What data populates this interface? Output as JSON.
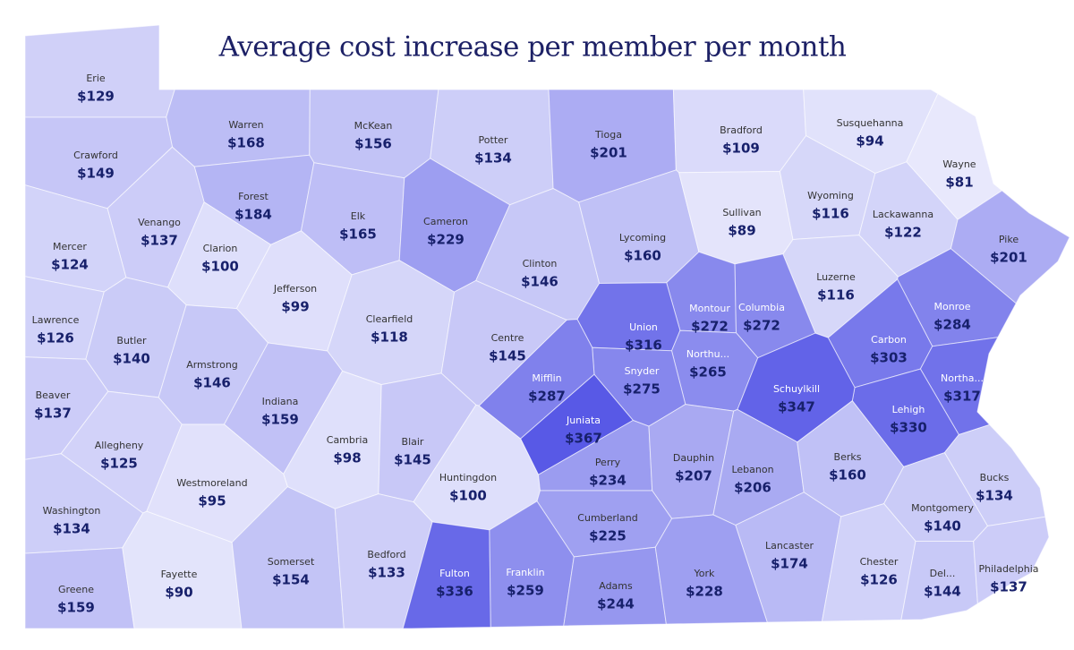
{
  "title": "Average cost increase per member per month",
  "color_scale": [
    "#e8e8fc",
    "#5859e6"
  ],
  "counties": [
    {
      "name": "Erie",
      "value": 129,
      "value_label": "$129"
    },
    {
      "name": "Warren",
      "value": 168,
      "value_label": "$168"
    },
    {
      "name": "McKean",
      "value": 156,
      "value_label": "$156"
    },
    {
      "name": "Potter",
      "value": 134,
      "value_label": "$134"
    },
    {
      "name": "Tioga",
      "value": 201,
      "value_label": "$201"
    },
    {
      "name": "Bradford",
      "value": 109,
      "value_label": "$109"
    },
    {
      "name": "Susquehanna",
      "value": 94,
      "value_label": "$94"
    },
    {
      "name": "Wayne",
      "value": 81,
      "value_label": "$81"
    },
    {
      "name": "Crawford",
      "value": 149,
      "value_label": "$149"
    },
    {
      "name": "Forest",
      "value": 184,
      "value_label": "$184"
    },
    {
      "name": "Elk",
      "value": 165,
      "value_label": "$165"
    },
    {
      "name": "Cameron",
      "value": 229,
      "value_label": "$229"
    },
    {
      "name": "Venango",
      "value": 137,
      "value_label": "$137"
    },
    {
      "name": "Mercer",
      "value": 124,
      "value_label": "$124"
    },
    {
      "name": "Clarion",
      "value": 100,
      "value_label": "$100"
    },
    {
      "name": "Jefferson",
      "value": 99,
      "value_label": "$99"
    },
    {
      "name": "Clearfield",
      "value": 118,
      "value_label": "$118"
    },
    {
      "name": "Clinton",
      "value": 146,
      "value_label": "$146"
    },
    {
      "name": "Lycoming",
      "value": 160,
      "value_label": "$160"
    },
    {
      "name": "Sullivan",
      "value": 89,
      "value_label": "$89"
    },
    {
      "name": "Wyoming",
      "value": 116,
      "value_label": "$116"
    },
    {
      "name": "Lackawanna",
      "value": 122,
      "value_label": "$122"
    },
    {
      "name": "Pike",
      "value": 201,
      "value_label": "$201"
    },
    {
      "name": "Luzerne",
      "value": 116,
      "value_label": "$116"
    },
    {
      "name": "Montour",
      "value": 272,
      "value_label": "$272"
    },
    {
      "name": "Columbia",
      "value": 272,
      "value_label": "$272"
    },
    {
      "name": "Union",
      "value": 316,
      "value_label": "$316"
    },
    {
      "name": "Northu...",
      "value": 265,
      "value_label": "$265"
    },
    {
      "name": "Monroe",
      "value": 284,
      "value_label": "$284"
    },
    {
      "name": "Carbon",
      "value": 303,
      "value_label": "$303"
    },
    {
      "name": "Northa...",
      "value": 317,
      "value_label": "$317"
    },
    {
      "name": "Lehigh",
      "value": 330,
      "value_label": "$330"
    },
    {
      "name": "Schuylkill",
      "value": 347,
      "value_label": "$347"
    },
    {
      "name": "Snyder",
      "value": 275,
      "value_label": "$275"
    },
    {
      "name": "Mifflin",
      "value": 287,
      "value_label": "$287"
    },
    {
      "name": "Juniata",
      "value": 367,
      "value_label": "$367"
    },
    {
      "name": "Centre",
      "value": 145,
      "value_label": "$145"
    },
    {
      "name": "Lawrence",
      "value": 126,
      "value_label": "$126"
    },
    {
      "name": "Butler",
      "value": 140,
      "value_label": "$140"
    },
    {
      "name": "Armstrong",
      "value": 146,
      "value_label": "$146"
    },
    {
      "name": "Indiana",
      "value": 159,
      "value_label": "$159"
    },
    {
      "name": "Beaver",
      "value": 137,
      "value_label": "$137"
    },
    {
      "name": "Allegheny",
      "value": 125,
      "value_label": "$125"
    },
    {
      "name": "Cambria",
      "value": 98,
      "value_label": "$98"
    },
    {
      "name": "Blair",
      "value": 145,
      "value_label": "$145"
    },
    {
      "name": "Huntingdon",
      "value": 100,
      "value_label": "$100"
    },
    {
      "name": "Westmoreland",
      "value": 95,
      "value_label": "$95"
    },
    {
      "name": "Washington",
      "value": 134,
      "value_label": "$134"
    },
    {
      "name": "Perry",
      "value": 234,
      "value_label": "$234"
    },
    {
      "name": "Dauphin",
      "value": 207,
      "value_label": "$207"
    },
    {
      "name": "Lebanon",
      "value": 206,
      "value_label": "$206"
    },
    {
      "name": "Berks",
      "value": 160,
      "value_label": "$160"
    },
    {
      "name": "Bucks",
      "value": 134,
      "value_label": "$134"
    },
    {
      "name": "Montgomery",
      "value": 140,
      "value_label": "$140"
    },
    {
      "name": "Cumberland",
      "value": 225,
      "value_label": "$225"
    },
    {
      "name": "Lancaster",
      "value": 174,
      "value_label": "$174"
    },
    {
      "name": "Chester",
      "value": 126,
      "value_label": "$126"
    },
    {
      "name": "Del...",
      "value": 144,
      "value_label": "$144"
    },
    {
      "name": "Philadelphia",
      "value": 137,
      "value_label": "$137"
    },
    {
      "name": "Greene",
      "value": 159,
      "value_label": "$159"
    },
    {
      "name": "Fayette",
      "value": 90,
      "value_label": "$90"
    },
    {
      "name": "Somerset",
      "value": 154,
      "value_label": "$154"
    },
    {
      "name": "Bedford",
      "value": 133,
      "value_label": "$133"
    },
    {
      "name": "Fulton",
      "value": 336,
      "value_label": "$336"
    },
    {
      "name": "Franklin",
      "value": 259,
      "value_label": "$259"
    },
    {
      "name": "Adams",
      "value": 244,
      "value_label": "$244"
    },
    {
      "name": "York",
      "value": 228,
      "value_label": "$228"
    }
  ]
}
